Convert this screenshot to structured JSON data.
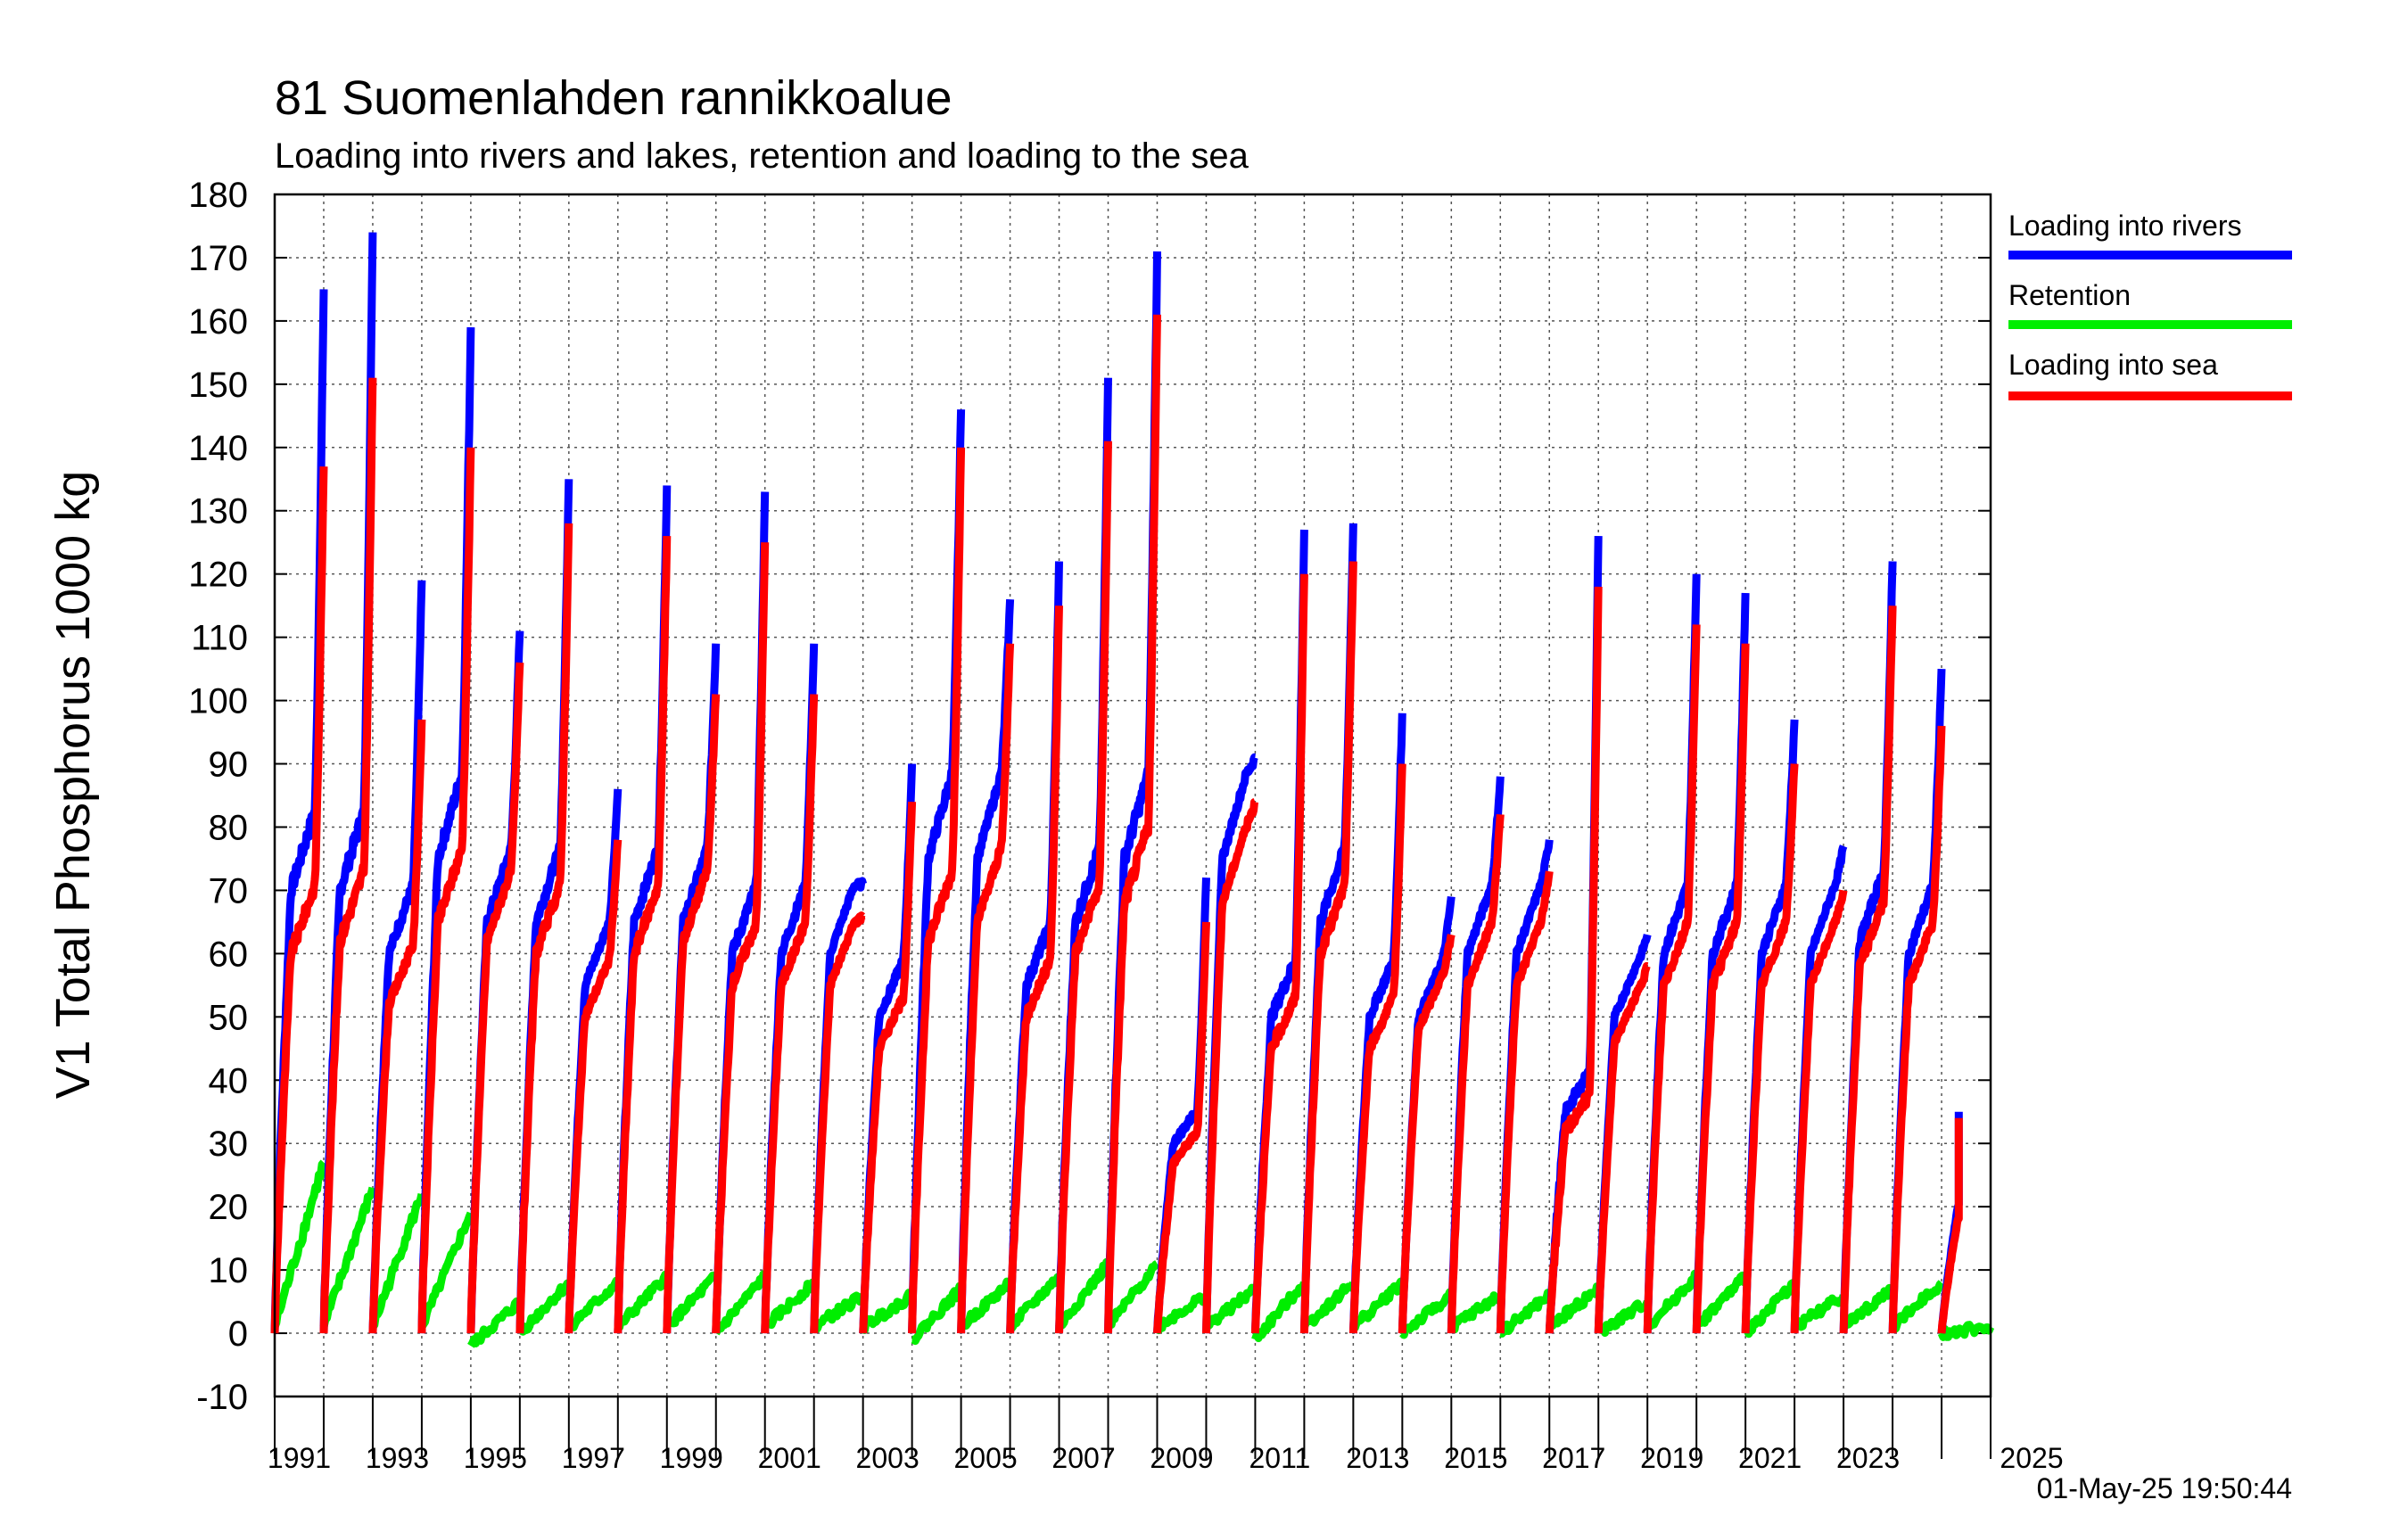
{
  "chart_data": {
    "type": "line",
    "title": "81 Suomenlahden rannikkoalue",
    "subtitle": "Loading into rivers and lakes, retention and loading to the sea",
    "ylabel": "V1 Total Phosphorus 1000 kg",
    "xlabel": "",
    "ylim": [
      -10,
      180
    ],
    "yticks": [
      -10,
      0,
      10,
      20,
      30,
      40,
      50,
      60,
      70,
      80,
      90,
      100,
      110,
      120,
      130,
      140,
      150,
      160,
      170,
      180
    ],
    "xlim": [
      1990,
      2025
    ],
    "xticklabels": [
      "1991",
      "1993",
      "1995",
      "1997",
      "1999",
      "2001",
      "2003",
      "2005",
      "2007",
      "2009",
      "2011",
      "2013",
      "2015",
      "2017",
      "2019",
      "2021",
      "2023",
      "2025"
    ],
    "grid": true,
    "legend_position": "right",
    "timestamp": "01-May-25 19:50:44",
    "series": [
      {
        "name": "Loading into rivers",
        "color": "#0000ff",
        "annual_totals": [
          165,
          174,
          119,
          159,
          111,
          135,
          86,
          134,
          109,
          133,
          109,
          71,
          90,
          146,
          116,
          122,
          151,
          171,
          72,
          91,
          127,
          128,
          98,
          69,
          88,
          78,
          126,
          63,
          120,
          117,
          97,
          77,
          122,
          105,
          35
        ],
        "annual_midyear": [
          70,
          70,
          60,
          75,
          65,
          65,
          55,
          65,
          65,
          60,
          60,
          60,
          50,
          75,
          75,
          55,
          65,
          75,
          30,
          75,
          50,
          65,
          50,
          50,
          60,
          60,
          35,
          50,
          60,
          60,
          60,
          60,
          62,
          60,
          20
        ]
      },
      {
        "name": "Retention",
        "color": "#00ee00",
        "annual_totals": [
          27,
          23,
          22,
          19,
          5,
          8,
          8,
          9,
          9,
          9,
          8,
          6,
          6,
          7,
          8,
          9,
          11,
          11,
          6,
          7,
          8,
          8,
          8,
          6,
          6,
          6,
          7,
          5,
          9,
          9,
          8,
          6,
          7,
          8,
          1
        ],
        "annual_start": [
          1,
          1,
          1,
          1,
          -2,
          0,
          1,
          1,
          1,
          0,
          1,
          1,
          1,
          -1,
          1,
          1,
          1,
          1,
          1,
          1,
          -1,
          1,
          1,
          0,
          1,
          0,
          1,
          0,
          1,
          1,
          0,
          1,
          1,
          1,
          0
        ]
      },
      {
        "name": "Loading into sea",
        "color": "#ff0000",
        "annual_totals": [
          137,
          151,
          97,
          140,
          106,
          128,
          78,
          126,
          101,
          125,
          101,
          66,
          84,
          140,
          109,
          115,
          141,
          161,
          65,
          84,
          120,
          122,
          90,
          63,
          82,
          73,
          118,
          58,
          112,
          109,
          90,
          70,
          115,
          96,
          34
        ],
        "annual_midyear": [
          60,
          62,
          52,
          65,
          62,
          60,
          50,
          60,
          62,
          55,
          55,
          55,
          45,
          62,
          65,
          50,
          60,
          68,
          27,
          68,
          45,
          60,
          45,
          48,
          55,
          55,
          32,
          46,
          55,
          55,
          55,
          55,
          58,
          55,
          18
        ]
      }
    ]
  }
}
